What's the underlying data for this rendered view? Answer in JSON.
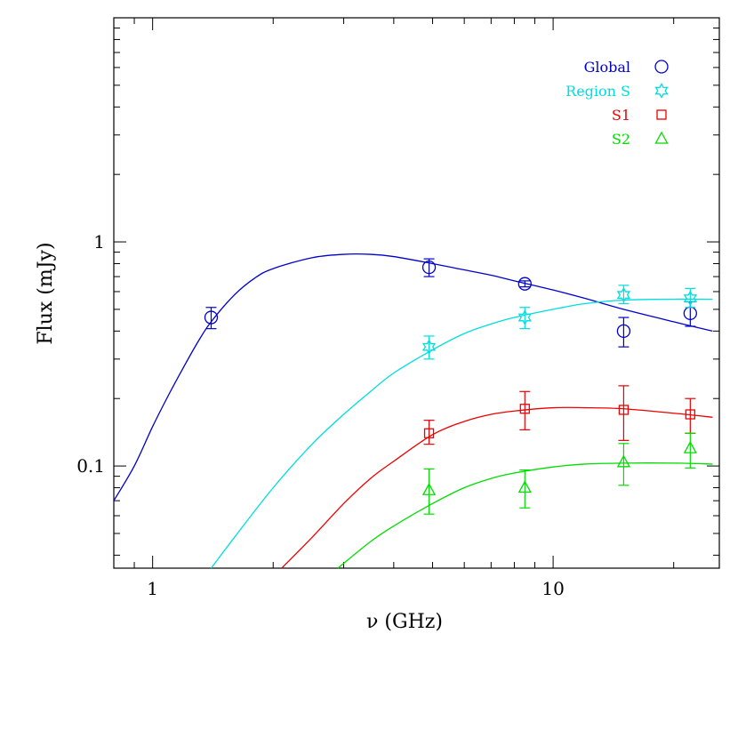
{
  "chart_data": {
    "type": "scatter",
    "title": "",
    "xlabel": "ν (GHz)",
    "ylabel": "Flux (mJy)",
    "xscale": "log",
    "yscale": "log",
    "xlim": [
      0.8,
      26
    ],
    "ylim": [
      0.035,
      10
    ],
    "x_tick_labels": [
      {
        "value": 1,
        "label": "1"
      },
      {
        "value": 10,
        "label": "10"
      }
    ],
    "y_tick_labels": [
      {
        "value": 0.1,
        "label": "0.1"
      },
      {
        "value": 1,
        "label": "1"
      }
    ],
    "legend_position": "top-right",
    "series": [
      {
        "name": "Global",
        "color": "#0000cc",
        "marker": "circle",
        "points": [
          {
            "x": 1.4,
            "y": 0.46,
            "ylo": 0.41,
            "yhi": 0.51
          },
          {
            "x": 4.9,
            "y": 0.77,
            "ylo": 0.7,
            "yhi": 0.84
          },
          {
            "x": 8.5,
            "y": 0.65,
            "ylo": 0.63,
            "yhi": 0.67
          },
          {
            "x": 15.0,
            "y": 0.4,
            "ylo": 0.34,
            "yhi": 0.46
          },
          {
            "x": 22.0,
            "y": 0.48,
            "ylo": 0.42,
            "yhi": 0.54
          }
        ],
        "fit": [
          [
            0.8,
            0.07
          ],
          [
            0.9,
            0.1
          ],
          [
            1.0,
            0.15
          ],
          [
            1.1,
            0.21
          ],
          [
            1.2,
            0.28
          ],
          [
            1.3,
            0.36
          ],
          [
            1.4,
            0.44
          ],
          [
            1.6,
            0.58
          ],
          [
            1.8,
            0.69
          ],
          [
            2.0,
            0.76
          ],
          [
            2.5,
            0.85
          ],
          [
            3.0,
            0.88
          ],
          [
            3.5,
            0.88
          ],
          [
            4.0,
            0.86
          ],
          [
            5.0,
            0.8
          ],
          [
            6.0,
            0.75
          ],
          [
            7.0,
            0.71
          ],
          [
            8.0,
            0.67
          ],
          [
            10.0,
            0.61
          ],
          [
            12.0,
            0.56
          ],
          [
            15.0,
            0.5
          ],
          [
            20.0,
            0.44
          ],
          [
            25.0,
            0.4
          ]
        ]
      },
      {
        "name": "Region S",
        "color": "#00dddd",
        "marker": "star",
        "points": [
          {
            "x": 4.9,
            "y": 0.34,
            "ylo": 0.3,
            "yhi": 0.38
          },
          {
            "x": 8.5,
            "y": 0.46,
            "ylo": 0.41,
            "yhi": 0.51
          },
          {
            "x": 15.0,
            "y": 0.58,
            "ylo": 0.53,
            "yhi": 0.64
          },
          {
            "x": 22.0,
            "y": 0.56,
            "ylo": 0.51,
            "yhi": 0.62
          }
        ],
        "fit": [
          [
            1.4,
            0.035
          ],
          [
            1.6,
            0.048
          ],
          [
            2.0,
            0.08
          ],
          [
            2.5,
            0.125
          ],
          [
            3.0,
            0.17
          ],
          [
            3.5,
            0.215
          ],
          [
            4.0,
            0.26
          ],
          [
            5.0,
            0.33
          ],
          [
            6.0,
            0.39
          ],
          [
            7.0,
            0.43
          ],
          [
            8.0,
            0.46
          ],
          [
            10.0,
            0.5
          ],
          [
            12.0,
            0.53
          ],
          [
            15.0,
            0.55
          ],
          [
            20.0,
            0.555
          ],
          [
            25.0,
            0.555
          ]
        ]
      },
      {
        "name": "S1",
        "color": "#ee0000",
        "marker": "square",
        "points": [
          {
            "x": 4.9,
            "y": 0.14,
            "ylo": 0.125,
            "yhi": 0.16
          },
          {
            "x": 8.5,
            "y": 0.18,
            "ylo": 0.145,
            "yhi": 0.215
          },
          {
            "x": 15.0,
            "y": 0.178,
            "ylo": 0.13,
            "yhi": 0.228
          },
          {
            "x": 22.0,
            "y": 0.17,
            "ylo": 0.14,
            "yhi": 0.2
          }
        ],
        "fit": [
          [
            2.1,
            0.035
          ],
          [
            2.5,
            0.048
          ],
          [
            3.0,
            0.068
          ],
          [
            3.5,
            0.088
          ],
          [
            4.0,
            0.105
          ],
          [
            5.0,
            0.138
          ],
          [
            6.0,
            0.158
          ],
          [
            7.0,
            0.17
          ],
          [
            8.0,
            0.176
          ],
          [
            10.0,
            0.182
          ],
          [
            12.0,
            0.182
          ],
          [
            15.0,
            0.18
          ],
          [
            20.0,
            0.172
          ],
          [
            25.0,
            0.165
          ]
        ]
      },
      {
        "name": "S2",
        "color": "#00dd00",
        "marker": "triangle",
        "points": [
          {
            "x": 4.9,
            "y": 0.078,
            "ylo": 0.061,
            "yhi": 0.097
          },
          {
            "x": 8.5,
            "y": 0.08,
            "ylo": 0.065,
            "yhi": 0.096
          },
          {
            "x": 15.0,
            "y": 0.104,
            "ylo": 0.082,
            "yhi": 0.126
          },
          {
            "x": 22.0,
            "y": 0.12,
            "ylo": 0.098,
            "yhi": 0.14
          }
        ],
        "fit": [
          [
            2.9,
            0.035
          ],
          [
            3.5,
            0.046
          ],
          [
            4.0,
            0.054
          ],
          [
            5.0,
            0.068
          ],
          [
            6.0,
            0.08
          ],
          [
            7.0,
            0.088
          ],
          [
            8.0,
            0.093
          ],
          [
            10.0,
            0.099
          ],
          [
            12.0,
            0.102
          ],
          [
            15.0,
            0.103
          ],
          [
            20.0,
            0.103
          ],
          [
            25.0,
            0.102
          ]
        ]
      }
    ]
  }
}
